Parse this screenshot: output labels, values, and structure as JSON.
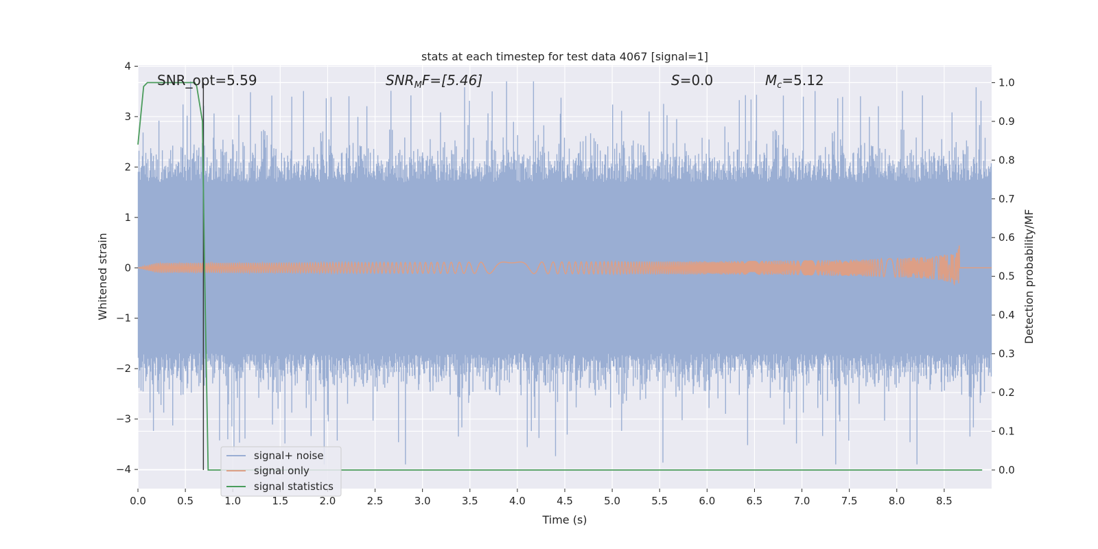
{
  "chart_data": {
    "type": "line",
    "title": "stats at each timestep for test data 4067 [signal=1]",
    "xlabel": "Time (s)",
    "ylabel_left": "Whitened strain",
    "ylabel_right": "Detection probability/MF",
    "xlim": [
      0.0,
      9.0
    ],
    "ylim_left": [
      -4.38,
      4.02
    ],
    "ylim_right": [
      -0.048,
      1.045
    ],
    "x_ticks": [
      "0.0",
      "0.5",
      "1.0",
      "1.5",
      "2.0",
      "2.5",
      "3.0",
      "3.5",
      "4.0",
      "4.5",
      "5.0",
      "5.5",
      "6.0",
      "6.5",
      "7.0",
      "7.5",
      "8.0",
      "8.5"
    ],
    "y_left_ticks": [
      "4",
      "3",
      "2",
      "1",
      "0",
      "−1",
      "−2",
      "−3",
      "−4"
    ],
    "y_right_ticks": [
      "1.0",
      "0.9",
      "0.8",
      "0.7",
      "0.6",
      "0.5",
      "0.4",
      "0.3",
      "0.2",
      "0.1",
      "0.0"
    ],
    "grid": true,
    "legend_position": "lower-left",
    "annotations": {
      "snr_opt": "SNR_opt=5.59",
      "snr_mf_base": "SNR",
      "snr_mf_sub": "M",
      "snr_mf_rest": "F=[5.46]",
      "s_var": "S",
      "s_rest": "=0.0",
      "mc_var": "M",
      "mc_sub": "c",
      "mc_rest": "=5.12"
    },
    "vertical_marker_x": 0.69,
    "series": [
      {
        "name": "signal+ noise",
        "axis": "left",
        "color": "#9aaed3",
        "description_values": "dense noise band, typical range about -2.0 to 2.0, peaks near ±3.6"
      },
      {
        "name": "signal only",
        "axis": "left",
        "color": "#dd9f86",
        "chirp_end_s": 8.66,
        "chirp_peak_amplitude": 0.45
      },
      {
        "name": "signal statistics",
        "axis": "right",
        "color": "#4a9c5b",
        "x": [
          0.0,
          0.06,
          0.1,
          0.2,
          0.3,
          0.4,
          0.5,
          0.6,
          0.62,
          0.68,
          0.7,
          0.74,
          0.8,
          1.5,
          3.0,
          5.0,
          7.0,
          8.5,
          8.9
        ],
        "y": [
          0.84,
          0.99,
          1.0,
          1.0,
          1.0,
          1.0,
          1.0,
          1.0,
          0.99,
          0.9,
          0.55,
          0.0,
          0.0,
          0.0,
          0.0,
          0.0,
          0.0,
          0.0,
          0.0
        ]
      }
    ]
  }
}
